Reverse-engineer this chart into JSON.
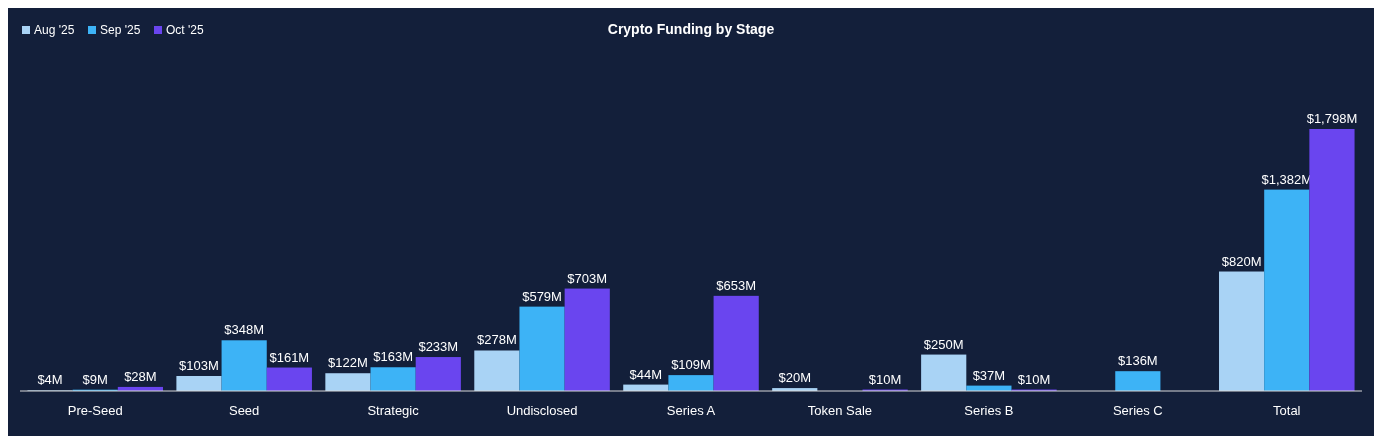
{
  "chart_data": {
    "type": "bar",
    "title": "Crypto Funding by Stage",
    "categories": [
      "Pre-Seed",
      "Seed",
      "Strategic",
      "Undisclosed",
      "Series A",
      "Token Sale",
      "Series B",
      "Series C",
      "Total"
    ],
    "series": [
      {
        "name": "Aug '25",
        "color": "#a9d3f5",
        "values": [
          4,
          103,
          122,
          278,
          44,
          20,
          250,
          null,
          820
        ],
        "value_labels": [
          "$4M",
          "$103M",
          "$122M",
          "$278M",
          "$44M",
          "$20M",
          "$250M",
          null,
          "$820M"
        ]
      },
      {
        "name": "Sep '25",
        "color": "#3db3f6",
        "values": [
          9,
          348,
          163,
          579,
          109,
          null,
          37,
          136,
          1382
        ],
        "value_labels": [
          "$9M",
          "$348M",
          "$163M",
          "$579M",
          "$109M",
          null,
          "$37M",
          "$136M",
          "$1,382M"
        ]
      },
      {
        "name": "Oct '25",
        "color": "#6a45ef",
        "values": [
          28,
          161,
          233,
          703,
          653,
          10,
          10,
          null,
          1798
        ],
        "value_labels": [
          "$28M",
          "$161M",
          "$233M",
          "$703M",
          "$653M",
          "$10M",
          "$10M",
          null,
          "$1,798M"
        ]
      }
    ],
    "legend": "top left",
    "grid": false
  }
}
